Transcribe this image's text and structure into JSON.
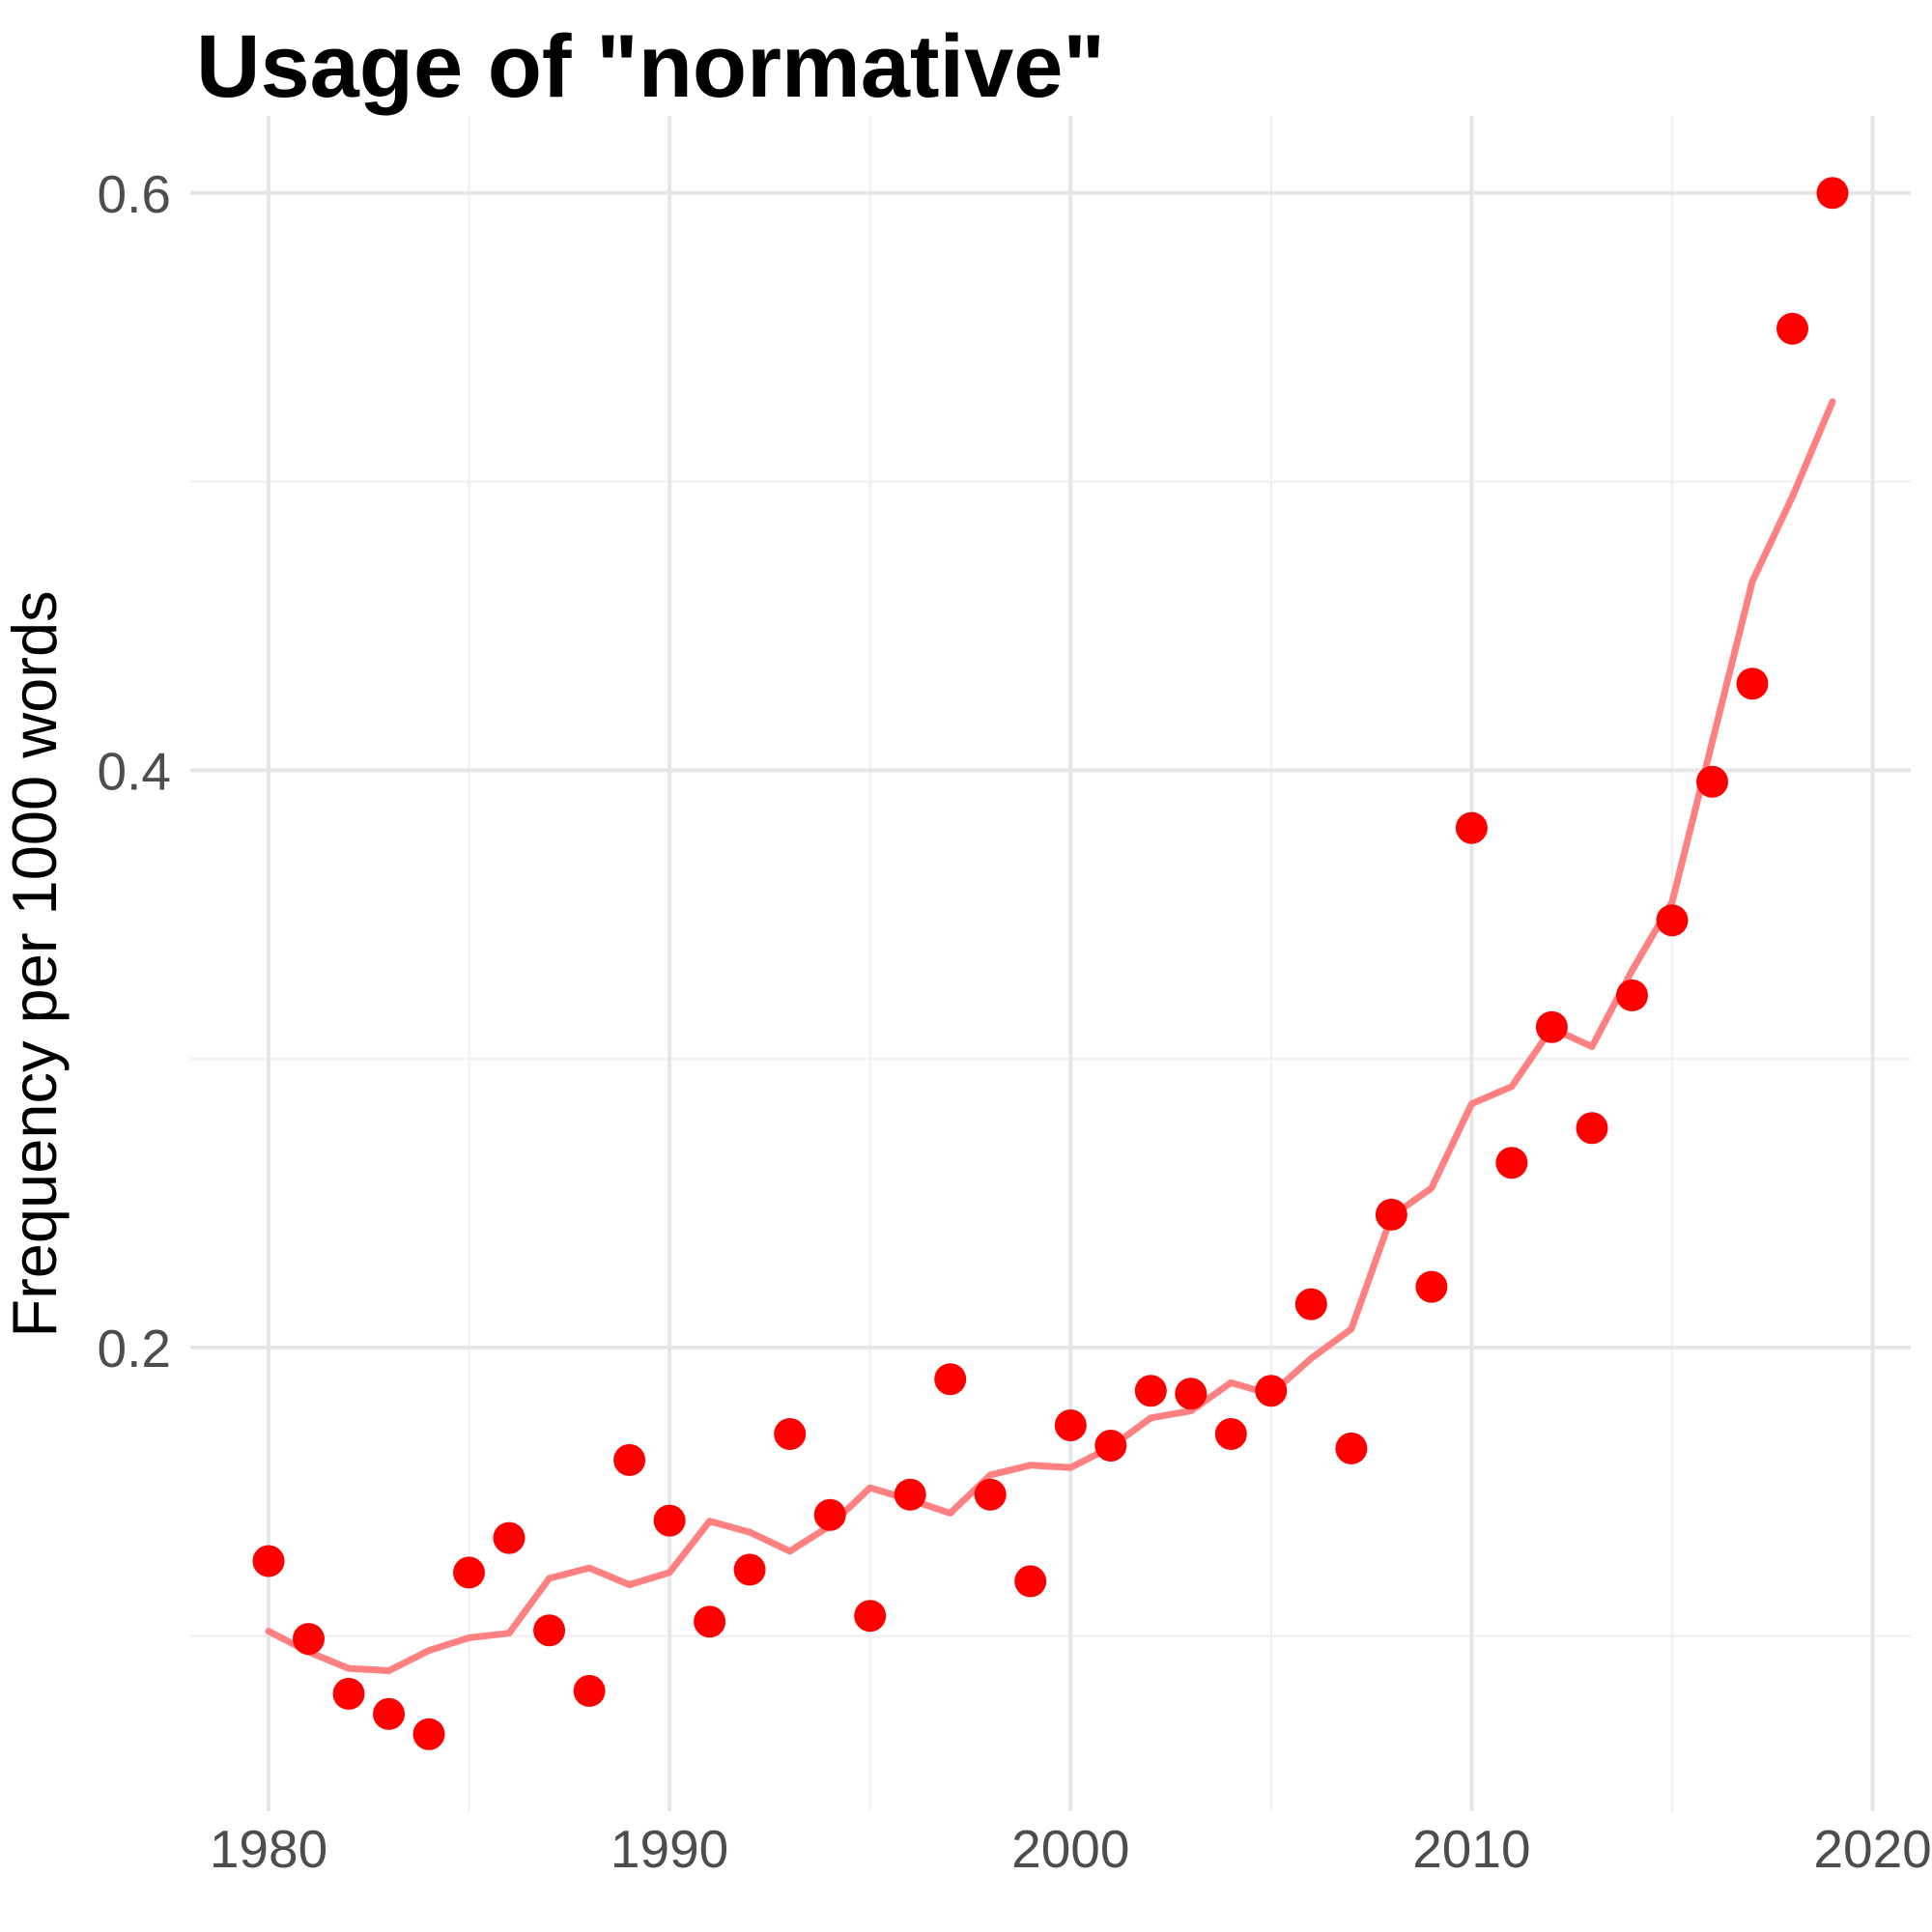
{
  "chart_data": {
    "type": "scatter",
    "title": "Usage of \"normative\"",
    "ylabel": "Frequency per 1000 words",
    "xlabel": "",
    "legend": "none",
    "grid": "on",
    "x_ticks": [
      1980,
      1990,
      2000,
      2010,
      2020
    ],
    "x_minor_ticks": [
      1985,
      1995,
      2005,
      2015
    ],
    "y_ticks": [
      0.2,
      0.4,
      0.6
    ],
    "y_minor_ticks": [
      0.1,
      0.3,
      0.5
    ],
    "x_domain": [
      1978.05,
      2020.95
    ],
    "y_domain": [
      0.0393,
      0.6267
    ],
    "years": [
      1980,
      1981,
      1982,
      1983,
      1984,
      1985,
      1986,
      1987,
      1988,
      1989,
      1990,
      1991,
      1992,
      1993,
      1994,
      1995,
      1996,
      1997,
      1998,
      1999,
      2000,
      2001,
      2002,
      2003,
      2004,
      2005,
      2006,
      2007,
      2008,
      2009,
      2010,
      2011,
      2012,
      2013,
      2014,
      2015,
      2016,
      2017,
      2018,
      2019
    ],
    "values": [
      0.126,
      0.099,
      0.08,
      0.073,
      0.066,
      0.122,
      0.134,
      0.102,
      0.081,
      0.161,
      0.14,
      0.105,
      0.123,
      0.17,
      0.142,
      0.107,
      0.149,
      0.189,
      0.149,
      0.119,
      0.173,
      0.166,
      0.185,
      0.184,
      0.17,
      0.185,
      0.215,
      0.165,
      0.246,
      0.221,
      0.38,
      0.264,
      0.311,
      0.276,
      0.322,
      0.348,
      0.396,
      0.43,
      0.553,
      0.6
    ],
    "trend": {
      "name": "5-year centered moving average (partial windows at ends)",
      "values": [
        0.1017,
        0.0945,
        0.0888,
        0.088,
        0.095,
        0.0994,
        0.101,
        0.12,
        0.1236,
        0.1178,
        0.122,
        0.1398,
        0.136,
        0.1294,
        0.1382,
        0.1514,
        0.1472,
        0.1426,
        0.1558,
        0.1592,
        0.1584,
        0.1654,
        0.1756,
        0.178,
        0.1878,
        0.1838,
        0.1962,
        0.2064,
        0.2454,
        0.2552,
        0.2844,
        0.2904,
        0.3106,
        0.3042,
        0.3306,
        0.3544,
        0.4098,
        0.4654,
        0.4948,
        0.5277
      ]
    },
    "colors": {
      "point": "#FF0000",
      "trend_line": "#FF8080",
      "grid_major": "#E6E6E6",
      "grid_minor": "#F1F1F1",
      "tick_label": "#4D4D4D",
      "background": "#FFFFFF"
    }
  }
}
